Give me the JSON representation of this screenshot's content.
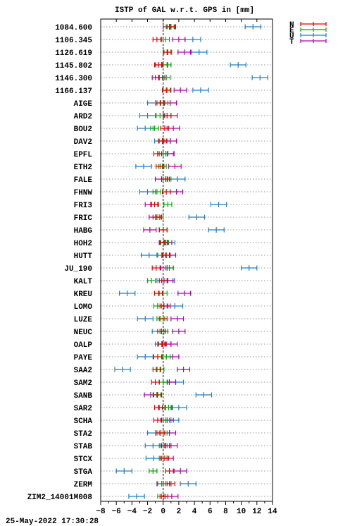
{
  "chart_data": {
    "type": "scatter",
    "title": "ISTP of GAL w.r.t. GPS in [mm]",
    "xlim": [
      -8,
      14
    ],
    "x_ticks": [
      -8,
      -6,
      -4,
      -2,
      0,
      2,
      4,
      6,
      8,
      10,
      12,
      14
    ],
    "x_tick_labels": [
      "−8",
      "−6",
      "−4",
      "−2",
      "0",
      "2",
      "4",
      "6",
      "8",
      "10",
      "12",
      "14"
    ],
    "grid": "horizontal dotted",
    "zero_line": "dashed",
    "legend_position": "top-right",
    "series": [
      {
        "name": "N",
        "color": "#dd0000"
      },
      {
        "name": "E",
        "color": "#00aa00"
      },
      {
        "name": "U",
        "color": "#1f7ec4"
      },
      {
        "name": "T",
        "color": "#aa00aa"
      }
    ],
    "categories": [
      "1084.600",
      "1106.345",
      "1126.619",
      "1145.802",
      "1146.300",
      "1166.137",
      "AIGE",
      "ARD2",
      "BOU2",
      "DAV2",
      "EPFL",
      "ETH2",
      "FALE",
      "FHNW",
      "FRI3",
      "FRIC",
      "HABG",
      "HOH2",
      "HUTT",
      "JU_190",
      "KALT",
      "KREU",
      "LOMO",
      "LUZE",
      "NEUC",
      "OALP",
      "PAYE",
      "SAA2",
      "SAM2",
      "SANB",
      "SAR2",
      "SCHA",
      "STA2",
      "STAB",
      "STCX",
      "STGA",
      "ZERM",
      "ZIM2_14001M008"
    ],
    "values": {
      "N": [
        1.0,
        -0.8,
        0.5,
        -0.6,
        -0.5,
        0.4,
        -0.3,
        0.5,
        0.2,
        -0.1,
        -0.7,
        -0.4,
        0.3,
        0.4,
        -1.1,
        -0.8,
        0.0,
        0.1,
        0.4,
        -0.9,
        0.0,
        -0.6,
        0.1,
        0.0,
        -0.2,
        -0.1,
        -0.7,
        -0.8,
        -1.0,
        -0.7,
        -0.6,
        -0.7,
        -0.3,
        0.3,
        0.2,
        0.8,
        1.0,
        0.1
      ],
      "E": [
        0.9,
        0.3,
        0.6,
        0.5,
        0.4,
        0.5,
        0.1,
        -0.4,
        -1.1,
        0.0,
        0.0,
        -0.1,
        0.5,
        -0.8,
        0.6,
        -0.5,
        0.0,
        0.2,
        -0.2,
        0.8,
        -1.5,
        0.0,
        -0.7,
        -0.3,
        0.1,
        -0.2,
        0.4,
        -0.4,
        0.0,
        -0.8,
        0.7,
        0.3,
        0.0,
        0.0,
        0.0,
        -1.3,
        -0.2,
        -0.2
      ],
      "U": [
        11.5,
        3.8,
        4.6,
        9.6,
        12.4,
        4.8,
        -1.0,
        -2.0,
        -2.3,
        -0.1,
        0.3,
        -2.5,
        1.8,
        -2.0,
        7.1,
        4.3,
        6.8,
        0.5,
        -1.8,
        11.0,
        0.2,
        -4.6,
        1.5,
        -2.3,
        -0.4,
        0.0,
        -2.3,
        -5.2,
        1.6,
        5.2,
        2.0,
        1.0,
        -1.0,
        -1.3,
        -1.2,
        -5.0,
        3.2,
        -3.4
      ],
      "T": [
        0.8,
        2.0,
        2.7,
        -0.2,
        -0.6,
        2.2,
        0.9,
        1.0,
        1.3,
        0.9,
        0.6,
        1.5,
        -0.2,
        1.7,
        -1.5,
        -1.0,
        -1.7,
        0.3,
        0.8,
        0.5,
        0.6,
        2.7,
        0.1,
        1.8,
        2.0,
        1.0,
        1.2,
        2.6,
        0.8,
        -1.6,
        0.3,
        0.5,
        0.8,
        1.0,
        0.5,
        2.2,
        0.0,
        1.1
      ]
    },
    "error_half_width": {
      "N": 0.5,
      "E": 0.5,
      "U": 1.0,
      "T": 0.8
    }
  },
  "footer": {
    "timestamp": "25-May-2022 17:30:28"
  }
}
